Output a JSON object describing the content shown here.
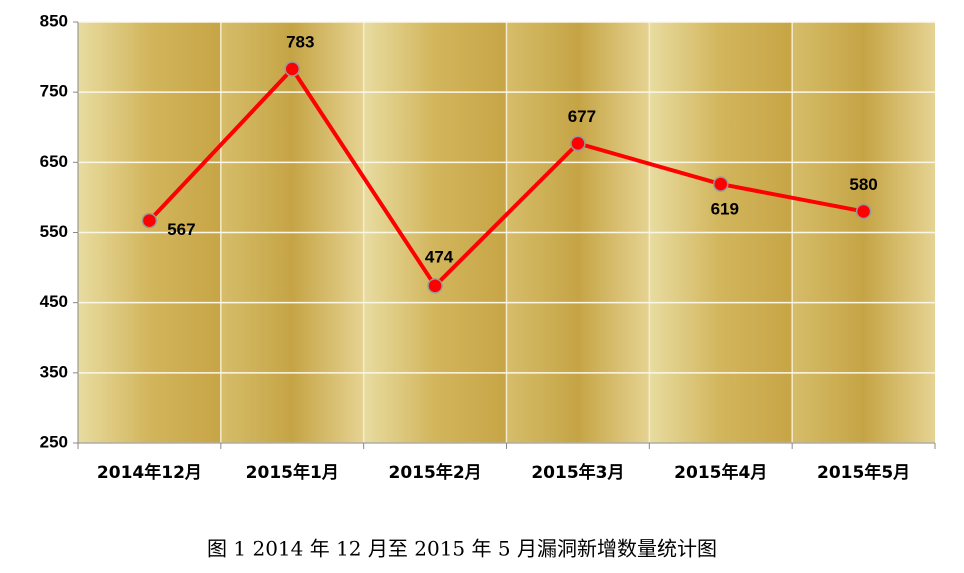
{
  "chart_data": {
    "type": "line",
    "caption": "图 1 2014 年 12 月至 2015 年 5 月漏洞新增数量统计图",
    "categories": [
      "2014年12月",
      "2015年1月",
      "2015年2月",
      "2015年3月",
      "2015年4月",
      "2015年5月"
    ],
    "values": [
      567,
      783,
      474,
      677,
      619,
      580
    ],
    "color": "#ff0000",
    "ylim": [
      250,
      850
    ],
    "yticks": [
      250,
      350,
      450,
      550,
      650,
      750,
      850
    ],
    "grid": true
  }
}
